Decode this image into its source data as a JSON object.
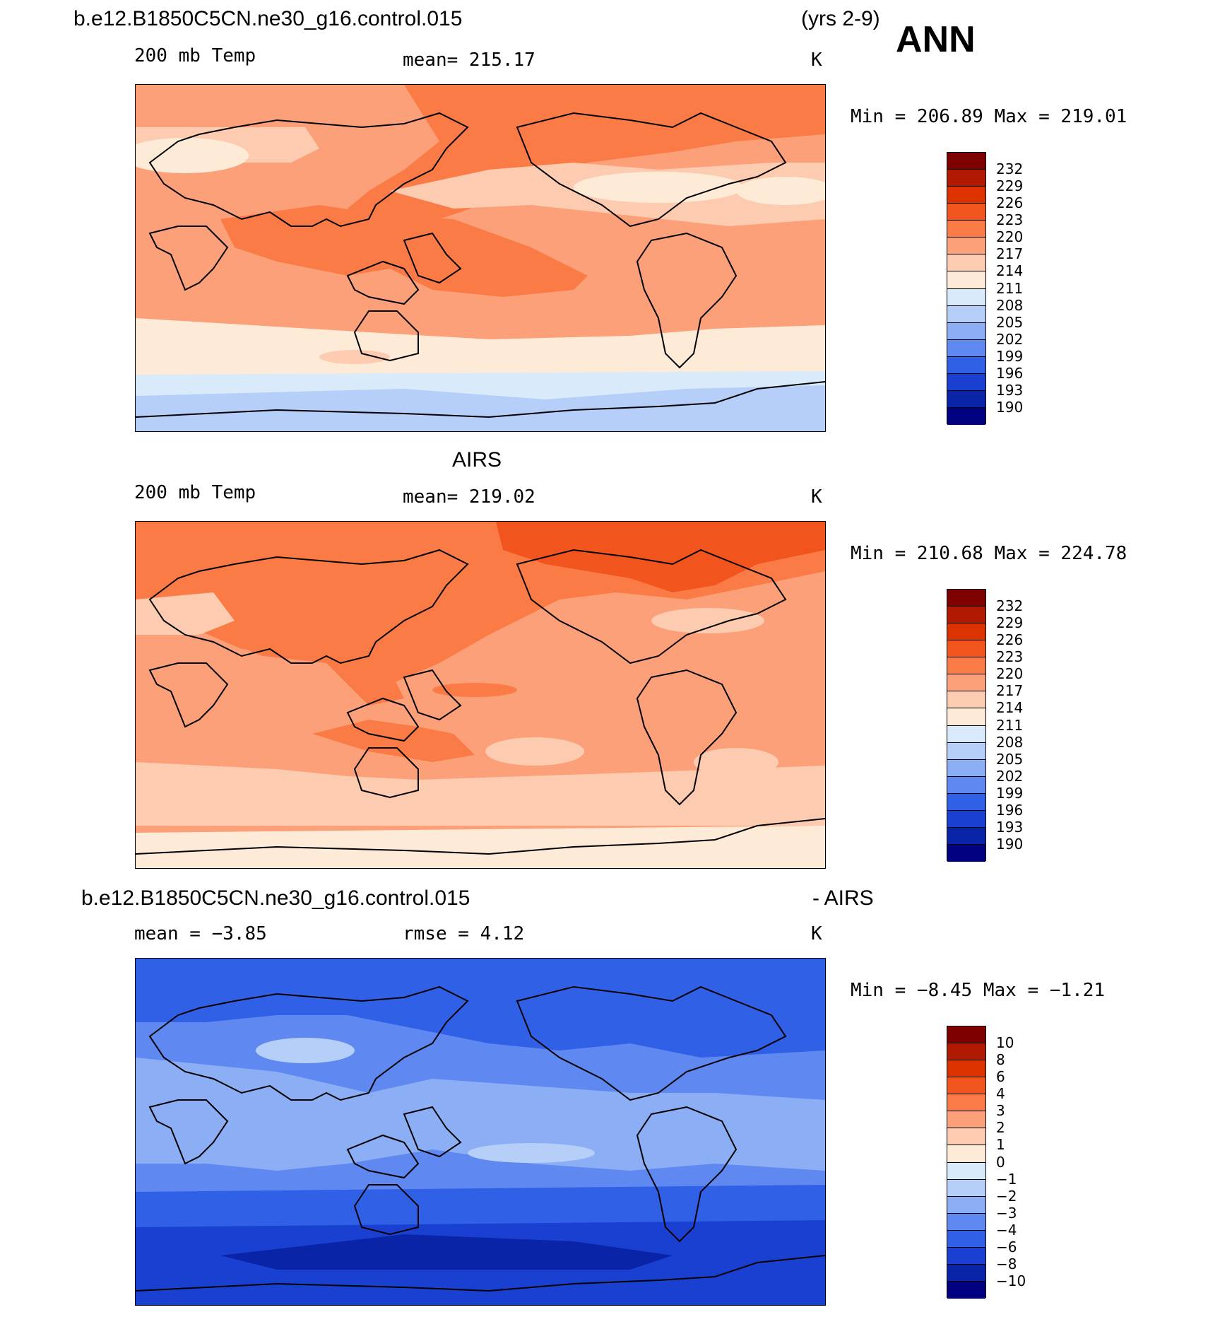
{
  "header": {
    "case_name": "b.e12.B1850C5CN.ne30_g16.control.015",
    "years": "(yrs 2-9)",
    "season": "ANN"
  },
  "panels": [
    {
      "id": "model",
      "title": "",
      "variable": "200 mb Temp",
      "stat": "mean=  215.17",
      "units": "K",
      "minmax": "Min  =  206.89  Max  =  219.01",
      "colorbar_labels": [
        "232",
        "229",
        "226",
        "223",
        "220",
        "217",
        "214",
        "211",
        "208",
        "205",
        "202",
        "199",
        "196",
        "193",
        "190"
      ]
    },
    {
      "id": "obs",
      "title": "AIRS",
      "variable": "200 mb Temp",
      "stat": "mean=  219.02",
      "units": "K",
      "minmax": "Min  =  210.68  Max  =  224.78",
      "colorbar_labels": [
        "232",
        "229",
        "226",
        "223",
        "220",
        "217",
        "214",
        "211",
        "208",
        "205",
        "202",
        "199",
        "196",
        "193",
        "190"
      ]
    },
    {
      "id": "diff",
      "title_left": "b.e12.B1850C5CN.ne30_g16.control.015",
      "title_right": "- AIRS",
      "variable": "mean =   −3.85",
      "stat": "rmse =    4.12",
      "units": "K",
      "minmax": "Min  =   −8.45  Max  =   −1.21",
      "colorbar_labels": [
        "10",
        "8",
        "6",
        "4",
        "3",
        "2",
        "1",
        "0",
        "−1",
        "−2",
        "−3",
        "−4",
        "−6",
        "−8",
        "−10"
      ]
    }
  ],
  "colors": {
    "colorbar_swatches": [
      "#7f0000",
      "#b01a00",
      "#dc3200",
      "#f2541e",
      "#fa7b46",
      "#fca07a",
      "#fdcbb0",
      "#fdebd8",
      "#d9eafa",
      "#b5cff8",
      "#8caef5",
      "#5f88f0",
      "#3060e6",
      "#1a40d2",
      "#0a24a8",
      "#000080"
    ],
    "model_map": {
      "base": "#fca07a",
      "warm": "#fa7b46",
      "cool": "#fdcbb0",
      "pale": "#fdebd8",
      "cold1": "#b5cff8",
      "cold2": "#d9eafa"
    },
    "obs_map": {
      "base": "#fca07a",
      "warm": "#fa7b46",
      "hot": "#f2541e",
      "cool": "#fdcbb0",
      "pale": "#fdebd8"
    },
    "diff_map": {
      "base": "#5f88f0",
      "mid": "#8caef5",
      "light": "#b5cff8",
      "deep": "#3060e6",
      "deeper": "#1a40d2",
      "deepest": "#0a24a8"
    }
  }
}
